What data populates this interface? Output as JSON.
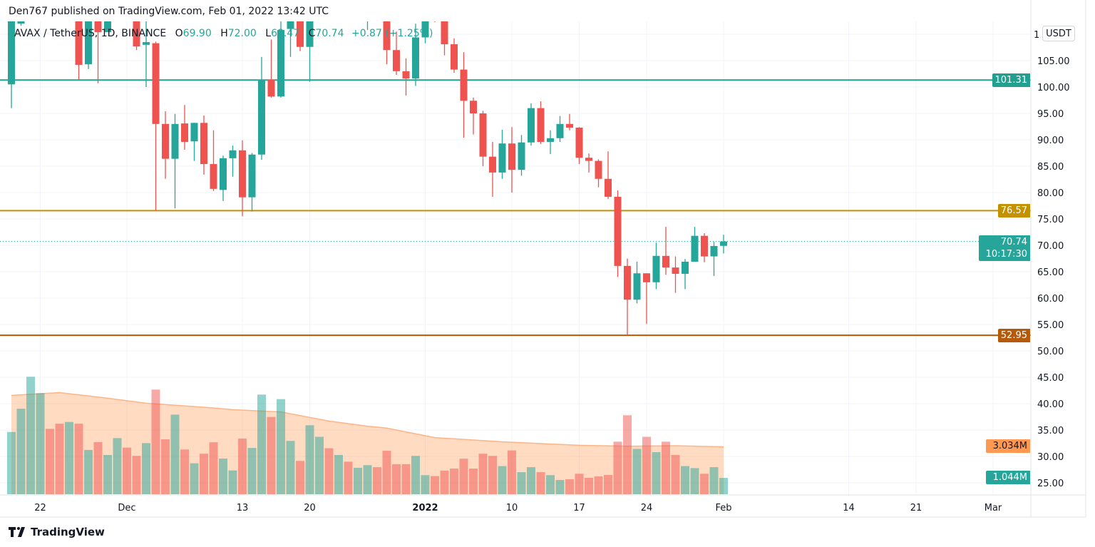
{
  "header": {
    "published": "Den767 published on TradingView.com, Feb 01, 2022 13:42 UTC"
  },
  "legend": {
    "symbol": "AVAX / TetherUS, 1D, BINANCE",
    "o_label": "O",
    "o": "69.90",
    "h_label": "H",
    "h": "72.00",
    "l_label": "L",
    "l": "68.47",
    "c_label": "C",
    "c": "70.74",
    "change": "+0.87 (+1.25%)"
  },
  "price_axis": {
    "currency_button": "USDT",
    "partial_top_label": "1",
    "ticks": [
      "105.00",
      "100.00",
      "95.00",
      "90.00",
      "85.00",
      "80.00",
      "75.00",
      "70.00",
      "65.00",
      "60.00",
      "55.00",
      "50.00",
      "45.00",
      "40.00",
      "35.00",
      "30.00",
      "25.00"
    ]
  },
  "horizontal_lines": [
    {
      "price": 101.31,
      "label": "101.31",
      "color": "#22a08f"
    },
    {
      "price": 76.57,
      "label": "76.57",
      "color": "#c49102"
    },
    {
      "price": 52.95,
      "label": "52.95",
      "color": "#b5590a"
    }
  ],
  "last_price": {
    "price": 70.74,
    "label": "70.74",
    "countdown": "10:17:30",
    "color": "#26a69a"
  },
  "volume_labels": {
    "ma": {
      "label": "3.034M",
      "color": "#ff9850"
    },
    "volume": {
      "label": "1.044M",
      "color": "#26a69a"
    }
  },
  "time_axis": [
    {
      "date": "2021-11-22",
      "label": "22"
    },
    {
      "date": "2021-12-01",
      "label": "Dec"
    },
    {
      "date": "2021-12-13",
      "label": "13"
    },
    {
      "date": "2021-12-20",
      "label": "20"
    },
    {
      "date": "2022-01-01",
      "label": "2022"
    },
    {
      "date": "2022-01-10",
      "label": "10"
    },
    {
      "date": "2022-01-17",
      "label": "17"
    },
    {
      "date": "2022-01-24",
      "label": "24"
    },
    {
      "date": "2022-02-01",
      "label": "Feb"
    },
    {
      "date": "2022-02-14",
      "label": "14"
    },
    {
      "date": "2022-02-21",
      "label": "21"
    },
    {
      "date": "2022-03-01",
      "label": "Mar"
    }
  ],
  "chart_data": {
    "type": "candlestick",
    "title": "AVAX / TetherUS, 1D, BINANCE",
    "ylim": [
      25,
      112
    ],
    "grid": true,
    "colors": {
      "up": "#26a69a",
      "down": "#ef5350"
    },
    "columns": [
      "date",
      "open",
      "high",
      "low",
      "close",
      "volume_m",
      "direction"
    ],
    "candles": [
      [
        "2021-11-19",
        100.5,
        115,
        96,
        113,
        3.98,
        "up"
      ],
      [
        "2021-11-20",
        112,
        113,
        111.6,
        112.5,
        5.47,
        "up"
      ],
      [
        "2021-11-21",
        null,
        null,
        null,
        null,
        7.51,
        "up"
      ],
      [
        "2021-11-22",
        null,
        null,
        null,
        null,
        6.46,
        "up"
      ],
      [
        "2021-11-23",
        null,
        null,
        null,
        null,
        4.18,
        "down"
      ],
      [
        "2021-11-24",
        null,
        null,
        null,
        null,
        4.51,
        "down"
      ],
      [
        "2021-11-25",
        null,
        null,
        null,
        null,
        4.62,
        "up"
      ],
      [
        "2021-11-26",
        118,
        120,
        101.4,
        104.2,
        4.51,
        "down"
      ],
      [
        "2021-11-27",
        104.3,
        116,
        103.4,
        114,
        2.83,
        "up"
      ],
      [
        "2021-11-28",
        113,
        114,
        100.7,
        110.4,
        3.33,
        "down"
      ],
      [
        "2021-11-29",
        110.4,
        115,
        110.4,
        113,
        2.51,
        "up"
      ],
      [
        "2021-11-30",
        null,
        null,
        null,
        null,
        3.59,
        "up"
      ],
      [
        "2021-12-01",
        null,
        null,
        null,
        null,
        2.98,
        "down"
      ],
      [
        "2021-12-02",
        113,
        114,
        107,
        107.7,
        2.45,
        "down"
      ],
      [
        "2021-12-03",
        108,
        113,
        100,
        108.5,
        3.27,
        "up"
      ],
      [
        "2021-12-04",
        108.3,
        108.6,
        76.6,
        93,
        6.69,
        "down"
      ],
      [
        "2021-12-05",
        93,
        95.4,
        82.6,
        86.4,
        3.51,
        "down"
      ],
      [
        "2021-12-06",
        86.4,
        94.9,
        77,
        93,
        5.09,
        "up"
      ],
      [
        "2021-12-07",
        93.1,
        96.6,
        88.1,
        89.6,
        2.86,
        "down"
      ],
      [
        "2021-12-08",
        89.7,
        93.2,
        86,
        93.2,
        1.98,
        "up"
      ],
      [
        "2021-12-09",
        93.2,
        94.6,
        83.4,
        85.4,
        2.59,
        "down"
      ],
      [
        "2021-12-10",
        85.4,
        91.8,
        80.3,
        80.7,
        3.32,
        "down"
      ],
      [
        "2021-12-11",
        80.5,
        87,
        78.4,
        86.5,
        2.28,
        "up"
      ],
      [
        "2021-12-12",
        86.5,
        88.9,
        83,
        88,
        1.52,
        "up"
      ],
      [
        "2021-12-13",
        88,
        89.9,
        75.5,
        79.1,
        3.56,
        "down"
      ],
      [
        "2021-12-14",
        79.1,
        87.5,
        76.4,
        87.2,
        2.96,
        "up"
      ],
      [
        "2021-12-15",
        87.2,
        105.7,
        86.2,
        101.4,
        6.37,
        "up"
      ],
      [
        "2021-12-16",
        101.4,
        109,
        98,
        98.2,
        4.94,
        "down"
      ],
      [
        "2021-12-17",
        98.2,
        113,
        98,
        110.8,
        6.08,
        "up"
      ],
      [
        "2021-12-18",
        111,
        116,
        105.7,
        115,
        3.41,
        "up"
      ],
      [
        "2021-12-19",
        114,
        115,
        106.8,
        107.6,
        2.13,
        "down"
      ],
      [
        "2021-12-20",
        107.6,
        115,
        101,
        113,
        4.41,
        "up"
      ],
      [
        "2021-12-21",
        null,
        null,
        null,
        null,
        3.67,
        "up"
      ],
      [
        "2021-12-22",
        null,
        null,
        null,
        null,
        2.94,
        "down"
      ],
      [
        "2021-12-23",
        null,
        null,
        null,
        null,
        2.51,
        "up"
      ],
      [
        "2021-12-24",
        null,
        null,
        null,
        null,
        2.08,
        "down"
      ],
      [
        "2021-12-25",
        null,
        null,
        null,
        null,
        1.69,
        "up"
      ],
      [
        "2021-12-26",
        114,
        116,
        110.8,
        115,
        1.86,
        "up"
      ],
      [
        "2021-12-27",
        null,
        null,
        null,
        null,
        1.73,
        "down"
      ],
      [
        "2021-12-28",
        114,
        115,
        104.3,
        107,
        2.78,
        "down"
      ],
      [
        "2021-12-29",
        107,
        110.5,
        102.3,
        103,
        1.92,
        "down"
      ],
      [
        "2021-12-30",
        103,
        105.4,
        98.4,
        101.6,
        1.92,
        "down"
      ],
      [
        "2021-12-31",
        101.6,
        112,
        100.2,
        109.4,
        2.45,
        "up"
      ],
      [
        "2022-01-01",
        109.4,
        113,
        108.3,
        112.5,
        1.22,
        "up"
      ],
      [
        "2022-01-02",
        115,
        116,
        112.3,
        114,
        1.16,
        "down"
      ],
      [
        "2022-01-03",
        113,
        114,
        106,
        108.1,
        1.51,
        "down"
      ],
      [
        "2022-01-04",
        108.1,
        109.2,
        102.7,
        103.3,
        1.64,
        "down"
      ],
      [
        "2022-01-05",
        103.3,
        106.6,
        90.4,
        97.4,
        2.27,
        "down"
      ],
      [
        "2022-01-06",
        97.4,
        98,
        91,
        95,
        1.64,
        "down"
      ],
      [
        "2022-01-07",
        95,
        95.5,
        85,
        86.8,
        2.59,
        "down"
      ],
      [
        "2022-01-08",
        86.8,
        89.6,
        79.2,
        83.8,
        2.45,
        "down"
      ],
      [
        "2022-01-09",
        83.8,
        91.9,
        82.6,
        89.3,
        1.8,
        "up"
      ],
      [
        "2022-01-10",
        89.3,
        92.4,
        80,
        84.3,
        2.8,
        "down"
      ],
      [
        "2022-01-11",
        84.3,
        90.9,
        83.2,
        89.5,
        1.41,
        "up"
      ],
      [
        "2022-01-12",
        89.5,
        96.9,
        88.9,
        96,
        1.73,
        "up"
      ],
      [
        "2022-01-13",
        96,
        97.3,
        89.2,
        89.6,
        1.41,
        "down"
      ],
      [
        "2022-01-14",
        89.6,
        91.8,
        87.3,
        90.3,
        1.22,
        "up"
      ],
      [
        "2022-01-15",
        90.3,
        94.5,
        89.6,
        93,
        0.91,
        "up"
      ],
      [
        "2022-01-16",
        93,
        94.9,
        91.8,
        92.3,
        0.96,
        "down"
      ],
      [
        "2022-01-17",
        92.3,
        92.4,
        85.4,
        86.6,
        1.31,
        "down"
      ],
      [
        "2022-01-18",
        86.6,
        87.4,
        83.8,
        86,
        1.05,
        "down"
      ],
      [
        "2022-01-19",
        86,
        86.3,
        81,
        82.6,
        1.14,
        "down"
      ],
      [
        "2022-01-20",
        82.6,
        87.8,
        78.8,
        79.2,
        1.23,
        "down"
      ],
      [
        "2022-01-21",
        79.2,
        80.4,
        64,
        66.1,
        3.36,
        "down"
      ],
      [
        "2022-01-22",
        66.1,
        67.5,
        52.95,
        59.7,
        5.05,
        "down"
      ],
      [
        "2022-01-23",
        59.7,
        66.9,
        59,
        64.7,
        2.9,
        "up"
      ],
      [
        "2022-01-24",
        64.7,
        64.7,
        55.1,
        63,
        3.67,
        "down"
      ],
      [
        "2022-01-25",
        63,
        70.5,
        61.7,
        68,
        2.69,
        "up"
      ],
      [
        "2022-01-26",
        68,
        73.5,
        64.4,
        65.8,
        3.36,
        "down"
      ],
      [
        "2022-01-27",
        65.8,
        67.9,
        61,
        64.6,
        2.51,
        "down"
      ],
      [
        "2022-01-28",
        64.6,
        67.4,
        61.7,
        66.9,
        1.8,
        "up"
      ],
      [
        "2022-01-29",
        66.9,
        73.5,
        66.9,
        71.8,
        1.67,
        "up"
      ],
      [
        "2022-01-30",
        71.8,
        72.3,
        66.8,
        67.9,
        1.31,
        "down"
      ],
      [
        "2022-01-31",
        67.9,
        70.7,
        64.2,
        69.87,
        1.73,
        "up"
      ],
      [
        "2022-02-01",
        69.9,
        72,
        68.47,
        70.74,
        1.044,
        "up"
      ]
    ],
    "volume_ma": [
      [
        "2021-11-19",
        6.32
      ],
      [
        "2021-11-24",
        6.5
      ],
      [
        "2021-11-29",
        6.14
      ],
      [
        "2021-12-03",
        5.82
      ],
      [
        "2021-12-10",
        5.52
      ],
      [
        "2021-12-12",
        5.41
      ],
      [
        "2021-12-17",
        5.26
      ],
      [
        "2021-12-22",
        4.68
      ],
      [
        "2021-12-26",
        4.35
      ],
      [
        "2021-12-28",
        4.23
      ],
      [
        "2022-01-02",
        3.62
      ],
      [
        "2022-01-09",
        3.35
      ],
      [
        "2022-01-17",
        3.13
      ],
      [
        "2022-01-22",
        3.07
      ],
      [
        "2022-01-27",
        3.1
      ],
      [
        "2022-02-01",
        3.034
      ]
    ]
  },
  "footer": {
    "brand": "TradingView"
  }
}
